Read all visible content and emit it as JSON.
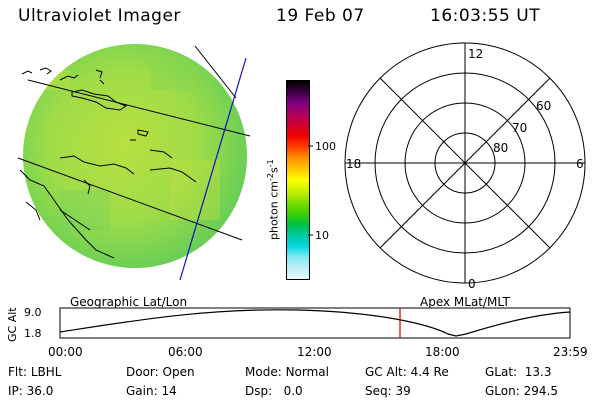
{
  "header": {
    "instrument": "Ultraviolet Imager",
    "date": "19 Feb 07",
    "time": "16:03:55 UT"
  },
  "colorbar": {
    "unit_label": "photon cm",
    "unit_exp1": "-2",
    "unit_s": "s",
    "unit_exp2": "-1",
    "ticks": [
      "100",
      "10"
    ],
    "colors": [
      "#000000",
      "#3a0040",
      "#800080",
      "#b00060",
      "#d00030",
      "#f00000",
      "#ff4000",
      "#ff9000",
      "#ffc800",
      "#ffff00",
      "#c8f000",
      "#80e000",
      "#40d000",
      "#00c040",
      "#00c8a0",
      "#00d8e0",
      "#80e8f0",
      "#c0f0f8",
      "#e8f8ff"
    ]
  },
  "earth_panel": {
    "label": "Geographic Lat/Lon",
    "disk_color": "#a8e04a",
    "disk_color_edge": "#6ad048"
  },
  "polar_panel": {
    "label": "Apex MLat/MLT",
    "mlt_labels": {
      "top": "12",
      "left": "18",
      "right": "6",
      "bottom": "0"
    },
    "lat_labels": [
      "60",
      "70",
      "80"
    ]
  },
  "altitude_plot": {
    "ylabel": "GC Alt",
    "y_ticks": [
      "9.0",
      "1.8"
    ],
    "x_ticks": [
      "00:00",
      "06:00",
      "12:00",
      "18:00",
      "23:59"
    ],
    "marker_color": "#cc0000"
  },
  "status": {
    "flt_label": "Flt:",
    "flt_value": "LBHL",
    "ip_label": "IP:",
    "ip_value": "36.0",
    "door_label": "Door:",
    "door_value": "Open",
    "gain_label": "Gain:",
    "gain_value": "14",
    "mode_label": "Mode:",
    "mode_value": "Normal",
    "dsp_label": "Dsp:",
    "dsp_value": "0.0",
    "gcalt_label": "GC Alt:",
    "gcalt_value": "4.4 Re",
    "seq_label": "Seq:",
    "seq_value": "39",
    "glat_label": "GLat:",
    "glat_value": "13.3",
    "glon_label": "GLon:",
    "glon_value": "294.5"
  }
}
